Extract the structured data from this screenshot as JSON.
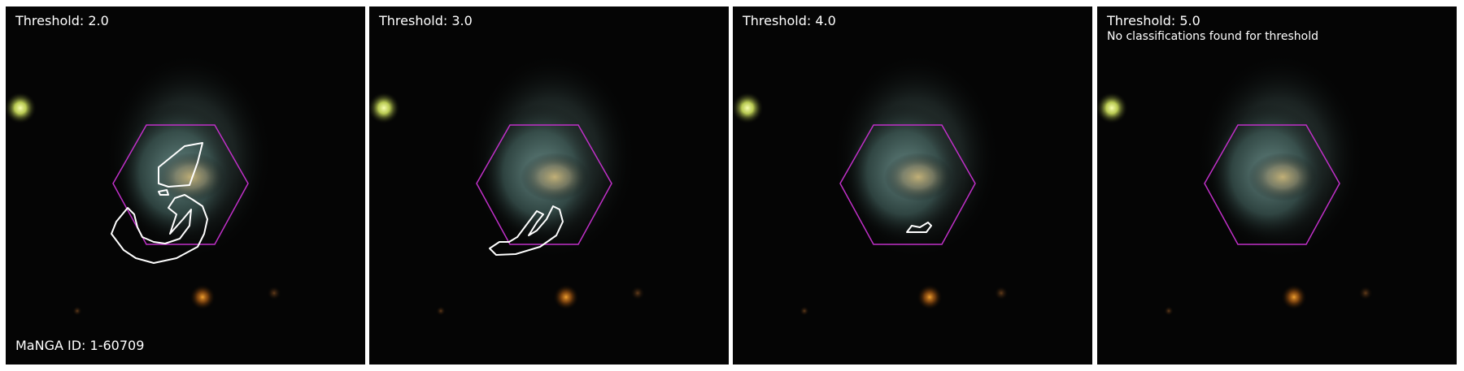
{
  "panels": [
    {
      "threshold_label": "Threshold: 2.0",
      "note": "",
      "id_label": "MaNGA ID: 1-60709"
    },
    {
      "threshold_label": "Threshold: 3.0",
      "note": "",
      "id_label": ""
    },
    {
      "threshold_label": "Threshold: 4.0",
      "note": "",
      "id_label": ""
    },
    {
      "threshold_label": "Threshold: 5.0",
      "note": "No classifications found for threshold",
      "id_label": ""
    }
  ],
  "colors": {
    "background": "#000000",
    "hexagon_outline": "#c030c8",
    "contour": "#ffffff",
    "text": "#ffffff",
    "galaxy_core": "#b8a878",
    "galaxy_disk": "#5a8a86",
    "star_yellow": "#e8f870",
    "star_orange": "#d07818"
  }
}
